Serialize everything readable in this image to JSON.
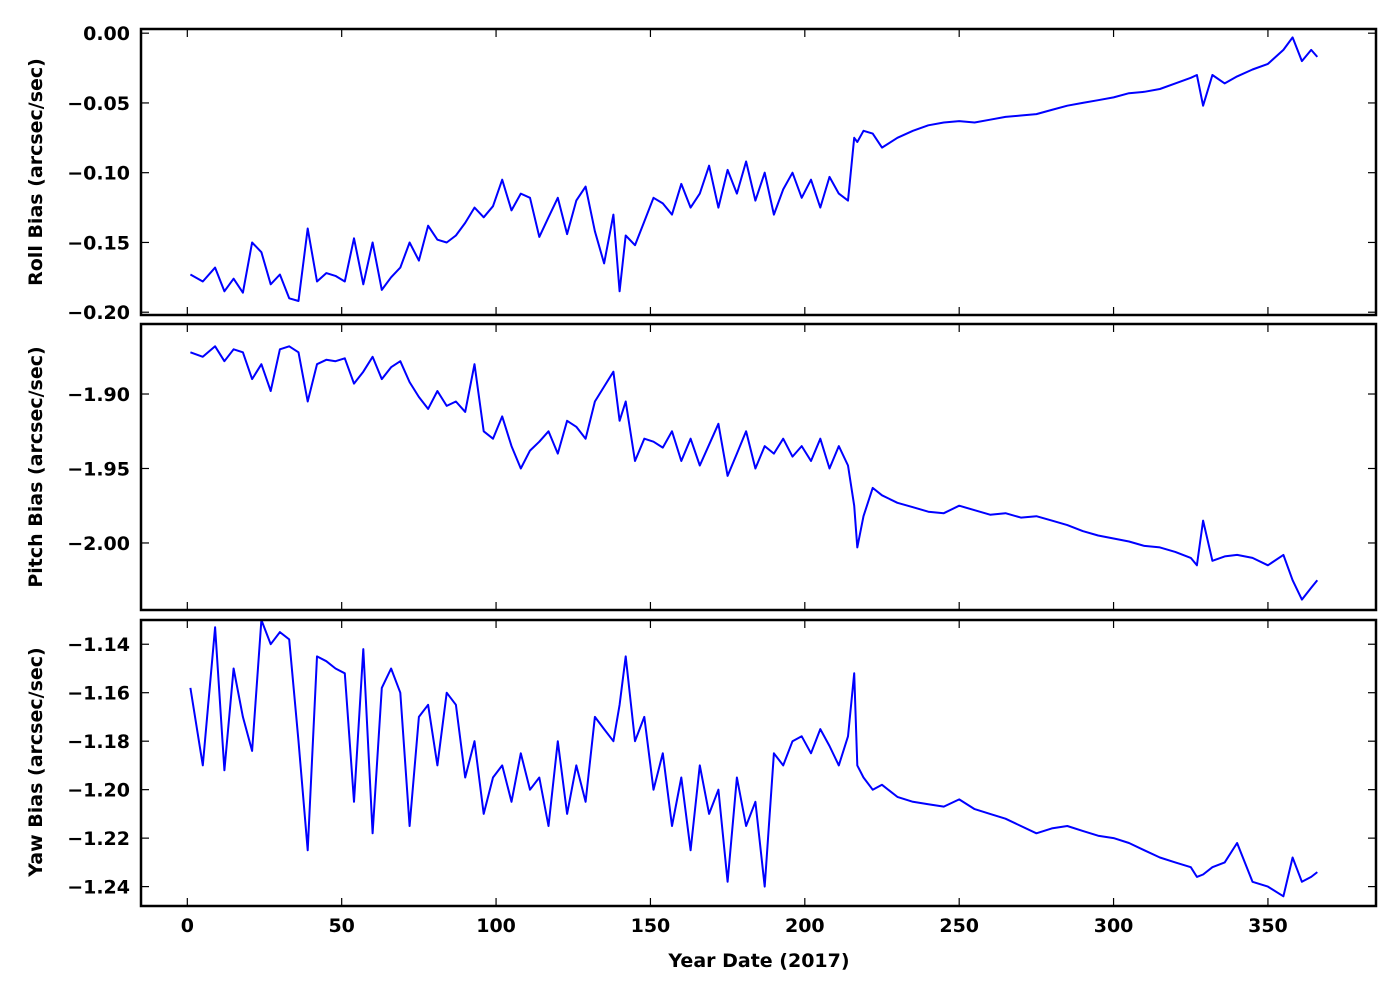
{
  "chart_data": {
    "type": "line",
    "xlabel": "Year Date (2017)",
    "xlim": [
      -15,
      385
    ],
    "xticks": [
      0,
      50,
      100,
      150,
      200,
      250,
      300,
      350
    ],
    "xtick_labels": [
      "0",
      "50",
      "100",
      "150",
      "200",
      "250",
      "300",
      "350"
    ],
    "line_color": "#0000ff",
    "panels": [
      {
        "id": "roll",
        "ylabel": "Roll Bias (arcsec/sec)",
        "ylim": [
          -0.202,
          0.003
        ],
        "yticks": [
          0.0,
          -0.05,
          -0.1,
          -0.15,
          -0.2
        ],
        "ytick_labels": [
          "0.00",
          "−0.05",
          "−0.10",
          "−0.15",
          "−0.20"
        ],
        "series": [
          {
            "x": [
              1,
              5,
              9,
              12,
              15,
              18,
              21,
              24,
              27,
              30,
              33,
              36,
              39,
              42,
              45,
              48,
              51,
              54,
              57,
              60,
              63,
              66,
              69,
              72,
              75,
              78,
              81,
              84,
              87,
              90,
              93,
              96,
              99,
              102,
              105,
              108,
              111,
              114,
              117,
              120,
              123,
              126,
              129,
              132,
              135,
              138,
              140,
              142,
              145,
              148,
              151,
              154,
              157,
              160,
              163,
              166,
              169,
              172,
              175,
              178,
              181,
              184,
              187,
              190,
              193,
              196,
              199,
              202,
              205,
              208,
              211,
              214,
              216,
              217,
              219,
              222,
              225,
              230,
              235,
              240,
              245,
              250,
              255,
              260,
              265,
              270,
              275,
              280,
              285,
              290,
              295,
              300,
              305,
              310,
              315,
              320,
              325,
              327,
              329,
              332,
              336,
              340,
              345,
              350,
              355,
              358,
              361,
              364,
              366
            ],
            "y": [
              -0.173,
              -0.178,
              -0.168,
              -0.185,
              -0.176,
              -0.186,
              -0.15,
              -0.157,
              -0.18,
              -0.173,
              -0.19,
              -0.192,
              -0.14,
              -0.178,
              -0.172,
              -0.174,
              -0.178,
              -0.147,
              -0.18,
              -0.15,
              -0.184,
              -0.175,
              -0.168,
              -0.15,
              -0.163,
              -0.138,
              -0.148,
              -0.15,
              -0.145,
              -0.136,
              -0.125,
              -0.132,
              -0.124,
              -0.105,
              -0.127,
              -0.115,
              -0.118,
              -0.146,
              -0.132,
              -0.118,
              -0.144,
              -0.12,
              -0.11,
              -0.142,
              -0.165,
              -0.13,
              -0.185,
              -0.145,
              -0.152,
              -0.135,
              -0.118,
              -0.122,
              -0.13,
              -0.108,
              -0.125,
              -0.115,
              -0.095,
              -0.125,
              -0.098,
              -0.115,
              -0.092,
              -0.12,
              -0.1,
              -0.13,
              -0.112,
              -0.1,
              -0.118,
              -0.105,
              -0.125,
              -0.103,
              -0.115,
              -0.12,
              -0.075,
              -0.078,
              -0.07,
              -0.072,
              -0.082,
              -0.075,
              -0.07,
              -0.066,
              -0.064,
              -0.063,
              -0.064,
              -0.062,
              -0.06,
              -0.059,
              -0.058,
              -0.055,
              -0.052,
              -0.05,
              -0.048,
              -0.046,
              -0.043,
              -0.042,
              -0.04,
              -0.036,
              -0.032,
              -0.03,
              -0.052,
              -0.03,
              -0.036,
              -0.031,
              -0.026,
              -0.022,
              -0.012,
              -0.003,
              -0.02,
              -0.012,
              -0.017
            ]
          }
        ]
      },
      {
        "id": "pitch",
        "ylabel": "Pitch Bias (arcsec/sec)",
        "ylim": [
          -2.045,
          -1.853
        ],
        "yticks": [
          -1.9,
          -1.95,
          -2.0
        ],
        "ytick_labels": [
          "−1.90",
          "−1.95",
          "−2.00"
        ],
        "series": [
          {
            "x": [
              1,
              5,
              9,
              12,
              15,
              18,
              21,
              24,
              27,
              30,
              33,
              36,
              39,
              42,
              45,
              48,
              51,
              54,
              57,
              60,
              63,
              66,
              69,
              72,
              75,
              78,
              81,
              84,
              87,
              90,
              93,
              96,
              99,
              102,
              105,
              108,
              111,
              114,
              117,
              120,
              123,
              126,
              129,
              132,
              135,
              138,
              140,
              142,
              145,
              148,
              151,
              154,
              157,
              160,
              163,
              166,
              169,
              172,
              175,
              178,
              181,
              184,
              187,
              190,
              193,
              196,
              199,
              202,
              205,
              208,
              211,
              214,
              216,
              217,
              219,
              222,
              225,
              230,
              235,
              240,
              245,
              250,
              255,
              260,
              265,
              270,
              275,
              280,
              285,
              290,
              295,
              300,
              305,
              310,
              315,
              320,
              325,
              327,
              329,
              332,
              336,
              340,
              345,
              350,
              355,
              358,
              361,
              364,
              366
            ],
            "y": [
              -1.872,
              -1.875,
              -1.868,
              -1.878,
              -1.87,
              -1.872,
              -1.89,
              -1.88,
              -1.898,
              -1.87,
              -1.868,
              -1.872,
              -1.905,
              -1.88,
              -1.877,
              -1.878,
              -1.876,
              -1.893,
              -1.885,
              -1.875,
              -1.89,
              -1.882,
              -1.878,
              -1.892,
              -1.902,
              -1.91,
              -1.898,
              -1.908,
              -1.905,
              -1.912,
              -1.88,
              -1.925,
              -1.93,
              -1.915,
              -1.935,
              -1.95,
              -1.938,
              -1.932,
              -1.925,
              -1.94,
              -1.918,
              -1.922,
              -1.93,
              -1.905,
              -1.895,
              -1.885,
              -1.918,
              -1.905,
              -1.945,
              -1.93,
              -1.932,
              -1.936,
              -1.925,
              -1.945,
              -1.93,
              -1.948,
              -1.934,
              -1.92,
              -1.955,
              -1.94,
              -1.925,
              -1.95,
              -1.935,
              -1.94,
              -1.93,
              -1.942,
              -1.935,
              -1.945,
              -1.93,
              -1.95,
              -1.935,
              -1.948,
              -1.975,
              -2.003,
              -1.982,
              -1.963,
              -1.968,
              -1.973,
              -1.976,
              -1.979,
              -1.98,
              -1.975,
              -1.978,
              -1.981,
              -1.98,
              -1.983,
              -1.982,
              -1.985,
              -1.988,
              -1.992,
              -1.995,
              -1.997,
              -1.999,
              -2.002,
              -2.003,
              -2.006,
              -2.01,
              -2.015,
              -1.985,
              -2.012,
              -2.009,
              -2.008,
              -2.01,
              -2.015,
              -2.008,
              -2.025,
              -2.038,
              -2.03,
              -2.025
            ]
          }
        ]
      },
      {
        "id": "yaw",
        "ylabel": "Yaw Bias (arcsec/sec)",
        "ylim": [
          -1.248,
          -1.13
        ],
        "yticks": [
          -1.14,
          -1.16,
          -1.18,
          -1.2,
          -1.22,
          -1.24
        ],
        "ytick_labels": [
          "−1.14",
          "−1.16",
          "−1.18",
          "−1.20",
          "−1.22",
          "−1.24"
        ],
        "series": [
          {
            "x": [
              1,
              5,
              9,
              12,
              15,
              18,
              21,
              24,
              27,
              30,
              33,
              36,
              39,
              42,
              45,
              48,
              51,
              54,
              57,
              60,
              63,
              66,
              69,
              72,
              75,
              78,
              81,
              84,
              87,
              90,
              93,
              96,
              99,
              102,
              105,
              108,
              111,
              114,
              117,
              120,
              123,
              126,
              129,
              132,
              135,
              138,
              140,
              142,
              145,
              148,
              151,
              154,
              157,
              160,
              163,
              166,
              169,
              172,
              175,
              178,
              181,
              184,
              187,
              190,
              193,
              196,
              199,
              202,
              205,
              208,
              211,
              214,
              216,
              217,
              219,
              222,
              225,
              230,
              235,
              240,
              245,
              250,
              255,
              260,
              265,
              270,
              275,
              280,
              285,
              290,
              295,
              300,
              305,
              310,
              315,
              320,
              325,
              327,
              329,
              332,
              336,
              340,
              345,
              350,
              355,
              358,
              361,
              364,
              366
            ],
            "y": [
              -1.158,
              -1.19,
              -1.133,
              -1.192,
              -1.15,
              -1.17,
              -1.184,
              -1.13,
              -1.14,
              -1.135,
              -1.138,
              -1.18,
              -1.225,
              -1.145,
              -1.147,
              -1.15,
              -1.152,
              -1.205,
              -1.142,
              -1.218,
              -1.158,
              -1.15,
              -1.16,
              -1.215,
              -1.17,
              -1.165,
              -1.19,
              -1.16,
              -1.165,
              -1.195,
              -1.18,
              -1.21,
              -1.195,
              -1.19,
              -1.205,
              -1.185,
              -1.2,
              -1.195,
              -1.215,
              -1.18,
              -1.21,
              -1.19,
              -1.205,
              -1.17,
              -1.175,
              -1.18,
              -1.165,
              -1.145,
              -1.18,
              -1.17,
              -1.2,
              -1.185,
              -1.215,
              -1.195,
              -1.225,
              -1.19,
              -1.21,
              -1.2,
              -1.238,
              -1.195,
              -1.215,
              -1.205,
              -1.24,
              -1.185,
              -1.19,
              -1.18,
              -1.178,
              -1.185,
              -1.175,
              -1.182,
              -1.19,
              -1.178,
              -1.152,
              -1.19,
              -1.195,
              -1.2,
              -1.198,
              -1.203,
              -1.205,
              -1.206,
              -1.207,
              -1.204,
              -1.208,
              -1.21,
              -1.212,
              -1.215,
              -1.218,
              -1.216,
              -1.215,
              -1.217,
              -1.219,
              -1.22,
              -1.222,
              -1.225,
              -1.228,
              -1.23,
              -1.232,
              -1.236,
              -1.235,
              -1.232,
              -1.23,
              -1.222,
              -1.238,
              -1.24,
              -1.244,
              -1.228,
              -1.238,
              -1.236,
              -1.234
            ]
          }
        ]
      }
    ]
  }
}
